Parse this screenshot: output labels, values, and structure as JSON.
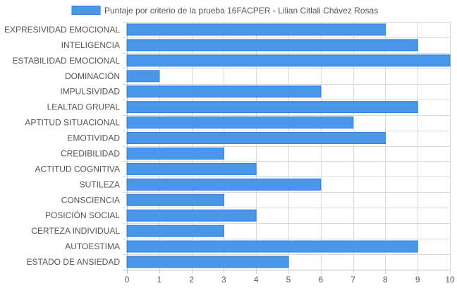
{
  "chart_data": {
    "type": "bar",
    "orientation": "horizontal",
    "title": "",
    "xlabel": "",
    "ylabel": "",
    "xlim": [
      0,
      10
    ],
    "x_ticks": [
      0,
      1,
      2,
      3,
      4,
      5,
      6,
      7,
      8,
      9,
      10
    ],
    "grid": true,
    "legend_position": "top",
    "categories": [
      "EXPRESIVIDAD EMOCIONAL",
      "INTELIGENCIA",
      "ESTABILIDAD EMOCIONAL",
      "DOMINACIÓN",
      "IMPULSIVIDAD",
      "LEALTAD GRUPAL",
      "APTITUD SITUACIONAL",
      "EMOTIVIDAD",
      "CREDIBILIDAD",
      "ACTITUD COGNITIVA",
      "SUTILEZA",
      "CONSCIENCIA",
      "POSICIÓN SOCIAL",
      "CERTEZA INDIVIDUAL",
      "AUTOESTIMA",
      "ESTADO DE ANSIEDAD"
    ],
    "series": [
      {
        "name": "Puntaje por criterio de la prueba 16FACPER - Lilian Citlali Chávez Rosas",
        "values": [
          8,
          9,
          10,
          1,
          6,
          9,
          7,
          8,
          3,
          4,
          6,
          3,
          4,
          3,
          9,
          5
        ],
        "color": "#4a96e8",
        "border_color": "#2f7fdc"
      }
    ],
    "grid_color": "#d9d9d9",
    "label_color": "#555555"
  }
}
